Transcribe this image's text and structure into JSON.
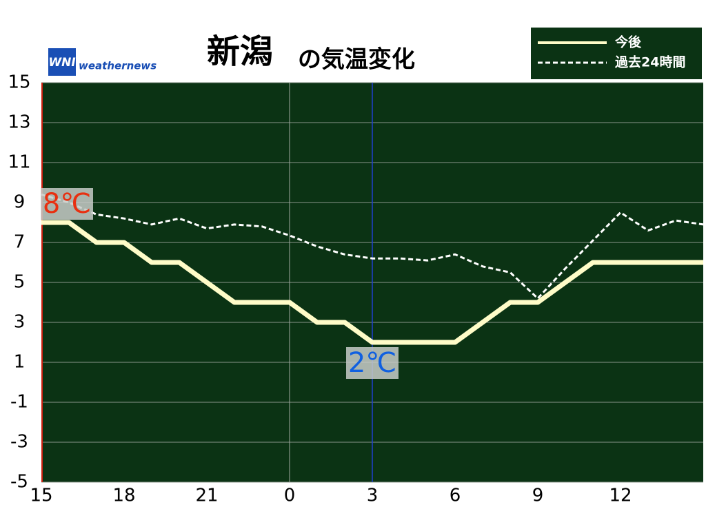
{
  "chart_data": {
    "type": "line",
    "title": "新潟",
    "subtitle": "の気温変化",
    "logo": {
      "mark": "WNI",
      "text": "weathernews"
    },
    "categories": [
      "15",
      null,
      null,
      "18",
      null,
      null,
      "21",
      null,
      null,
      "0",
      null,
      null,
      "3",
      null,
      null,
      "6",
      null,
      null,
      "9",
      null,
      null,
      "12",
      null,
      null,
      null
    ],
    "series": [
      {
        "name": "今後",
        "color": "#fffcc8",
        "style": "solid",
        "values": [
          8,
          8,
          7,
          7,
          6,
          6,
          5,
          4,
          4,
          4,
          3,
          3,
          2,
          2,
          2,
          2,
          3,
          4,
          4,
          5,
          6,
          6,
          6,
          6,
          6
        ],
        "value_labels": [
          "8℃",
          null,
          null,
          null,
          null,
          null,
          null,
          null,
          null,
          null,
          null,
          null,
          "2℃",
          null,
          null,
          null,
          null,
          null,
          null,
          null,
          null,
          null,
          null,
          null,
          null
        ]
      },
      {
        "name": "過去24時間",
        "color": "#ffffff",
        "style": "dashed",
        "values": [
          9.4,
          9.0,
          8.4,
          8.2,
          7.9,
          8.2,
          7.7,
          7.9,
          7.8,
          7.35,
          6.8,
          6.4,
          6.2,
          6.2,
          6.1,
          6.4,
          5.8,
          5.5,
          4.2,
          5.7,
          7.1,
          8.5,
          7.6,
          8.1,
          7.9
        ]
      }
    ],
    "ylim": [
      -5,
      15
    ],
    "yticks": [
      -5,
      -3,
      -1,
      1,
      3,
      5,
      7,
      9,
      11,
      13,
      15
    ],
    "grid": true
  }
}
